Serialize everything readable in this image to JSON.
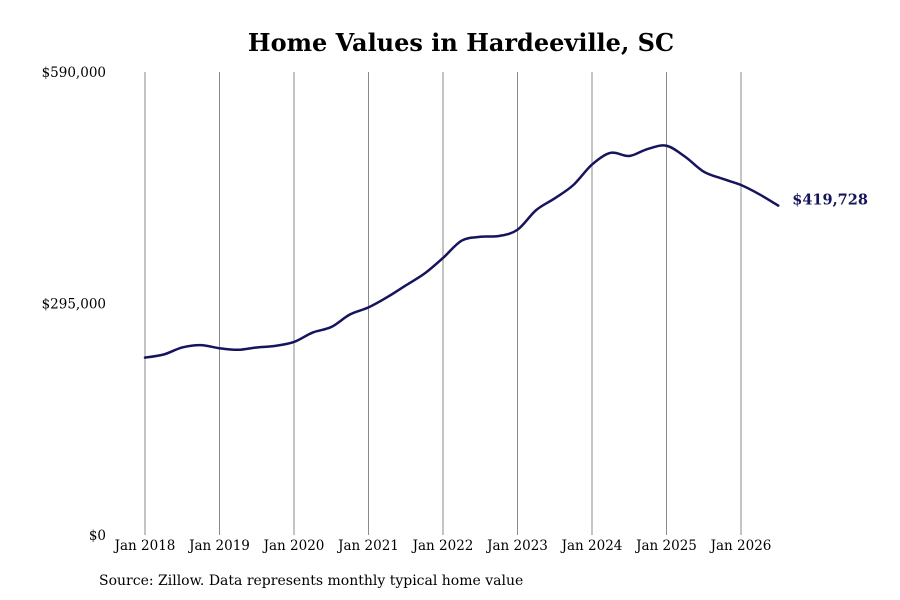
{
  "chart_data": {
    "type": "line",
    "title": "Home Values in Hardeeville, SC",
    "xlabel": "",
    "ylabel": "",
    "ylim": [
      0,
      590000
    ],
    "y_ticks": [
      0,
      295000,
      590000
    ],
    "y_tick_labels": [
      "$0",
      "$295,000",
      "$590,000"
    ],
    "x_tick_labels": [
      "Jan 2018",
      "Jan 2019",
      "Jan 2020",
      "Jan 2021",
      "Jan 2022",
      "Jan 2023",
      "Jan 2024",
      "Jan 2025",
      "Jan 2026"
    ],
    "x_range": [
      "2018-01",
      "2026-07"
    ],
    "grid": "vertical",
    "line_color": "#15145c",
    "series": [
      {
        "dates": [
          "2018-01",
          "2018-04",
          "2018-07",
          "2018-10",
          "2019-01",
          "2019-04",
          "2019-07",
          "2019-10",
          "2020-01",
          "2020-04",
          "2020-07",
          "2020-10",
          "2021-01",
          "2021-04",
          "2021-07",
          "2021-10",
          "2022-01",
          "2022-04",
          "2022-07",
          "2022-10",
          "2023-01",
          "2023-04",
          "2023-07",
          "2023-10",
          "2024-01",
          "2024-04",
          "2024-07",
          "2024-10",
          "2025-01",
          "2025-04",
          "2025-07",
          "2025-10",
          "2026-01",
          "2026-04",
          "2026-07"
        ],
        "values": [
          226000,
          230000,
          239000,
          242000,
          238000,
          236000,
          239000,
          241000,
          246000,
          258000,
          265000,
          281000,
          290000,
          303000,
          318000,
          333000,
          353000,
          375000,
          380000,
          381000,
          389000,
          414000,
          429000,
          446000,
          472000,
          487000,
          483000,
          492000,
          496000,
          482000,
          463000,
          454000,
          446000,
          434000,
          419728
        ]
      }
    ],
    "end_label": "$419,728",
    "source": "Source: Zillow. Data represents monthly typical home value"
  }
}
